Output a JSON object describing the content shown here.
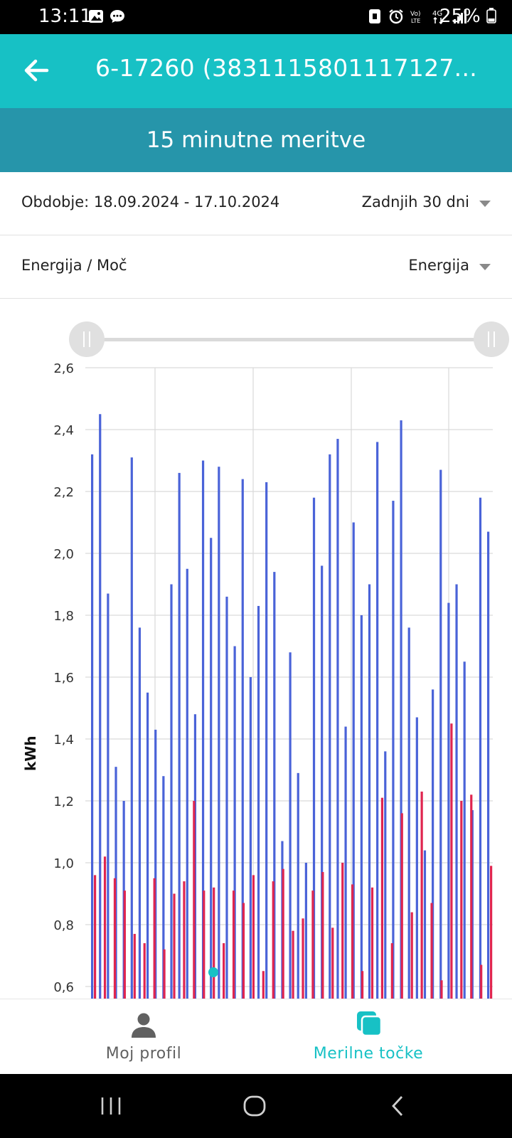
{
  "status_bar": {
    "time": "13:11",
    "battery": "25%",
    "icons": [
      "image-icon",
      "message-icon",
      "alarm-icon",
      "volte-icon",
      "4g-icon",
      "signal-icon",
      "battery-icon"
    ]
  },
  "app_bar": {
    "title": "6-17260 (3831115801117127..."
  },
  "sub_header": {
    "title": "15 minutne meritve"
  },
  "period": {
    "label": "Obdobje: 18.09.2024 - 17.10.2024",
    "dropdown_value": "Zadnjih 30 dni"
  },
  "mode": {
    "label": "Energija / Moč",
    "dropdown_value": "Energija"
  },
  "colors": {
    "accent": "#17c1c5",
    "sub_header": "#2695aa",
    "series_consumption": "#4a63d8",
    "series_delivery": "#e0254f"
  },
  "chart_data": {
    "type": "bar",
    "ylabel": "kWh",
    "ylim": [
      0.6,
      2.6
    ],
    "yticks": [
      "2,6",
      "2,4",
      "2,2",
      "2,0",
      "1,8",
      "1,6",
      "1,4",
      "1,2",
      "1,0",
      "0,8",
      "0,6"
    ],
    "series": [
      {
        "values": [
          2.32,
          2.45,
          1.87,
          1.31,
          1.2,
          2.31,
          1.76,
          1.55,
          1.43,
          1.28,
          1.9,
          2.26,
          1.95,
          1.48,
          2.3,
          2.05,
          2.28,
          1.86,
          1.7,
          2.24,
          1.6,
          1.83,
          2.23,
          1.94,
          1.07,
          1.68,
          1.29,
          1.0,
          2.18,
          1.96,
          2.32,
          2.37,
          1.44,
          2.1,
          1.8,
          1.9,
          2.36,
          1.36,
          2.17,
          2.43,
          1.76,
          1.47,
          1.04,
          1.56,
          2.27,
          1.84,
          1.9,
          1.65,
          1.17,
          2.18,
          2.07
        ]
      },
      {
        "values": [
          0.96,
          1.02,
          0.95,
          0.91,
          0.77,
          0.74,
          0.95,
          0.72,
          0.9,
          0.94,
          1.2,
          0.91,
          0.92,
          0.74,
          0.91,
          0.87,
          0.96,
          0.65,
          0.94,
          0.98,
          0.78,
          0.82,
          0.91,
          0.97,
          0.79,
          1.0,
          0.93,
          0.65,
          0.92,
          1.21,
          0.74,
          1.16,
          0.84,
          1.23,
          0.87,
          0.62,
          1.45,
          1.2,
          1.22,
          0.67,
          0.99
        ]
      }
    ],
    "grid": true,
    "range_slider": true
  },
  "bottom_nav": {
    "items": [
      {
        "label": "Moj profil",
        "icon": "person-icon"
      },
      {
        "label": "Merilne točke",
        "icon": "meter-points-icon"
      }
    ]
  }
}
